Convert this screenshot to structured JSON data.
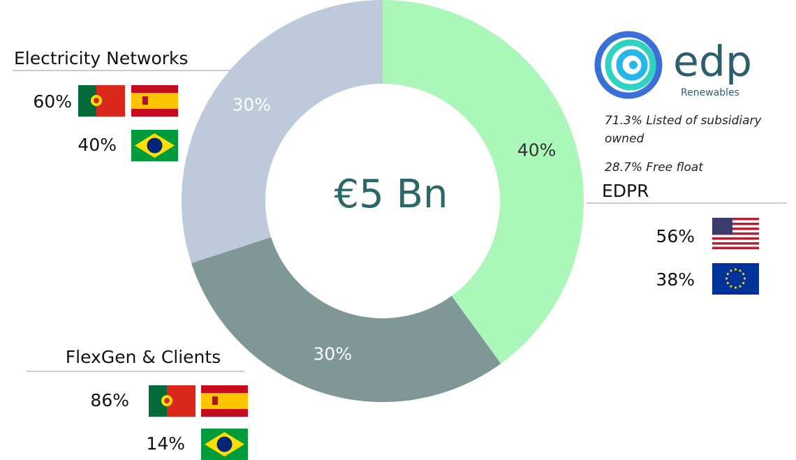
{
  "chart_data": {
    "type": "pie",
    "donut": true,
    "center_label": "€5 Bn",
    "categories": [
      "EDPR",
      "FlexGen & Clients",
      "Electricity Networks"
    ],
    "values": [
      40,
      30,
      30
    ],
    "value_labels": [
      "40%",
      "30%",
      "30%"
    ],
    "colors": [
      "#aaf7b9",
      "#7f9797",
      "#bccadb"
    ],
    "label_colors": [
      "#333333",
      "#ffffff",
      "#ffffff"
    ]
  },
  "logo": {
    "name": "edp",
    "subtitle": "Renewables"
  },
  "notes": [
    "71.3% Listed of subsidiary owned",
    "28.7% Free float"
  ],
  "panels": [
    {
      "title": "Electricity Networks",
      "rows": [
        "60%",
        "40%"
      ]
    },
    {
      "title": "EDPR",
      "rows": [
        "56%",
        "38%"
      ]
    },
    {
      "title": "FlexGen & Clients",
      "rows": [
        "86%",
        "14%"
      ]
    }
  ]
}
